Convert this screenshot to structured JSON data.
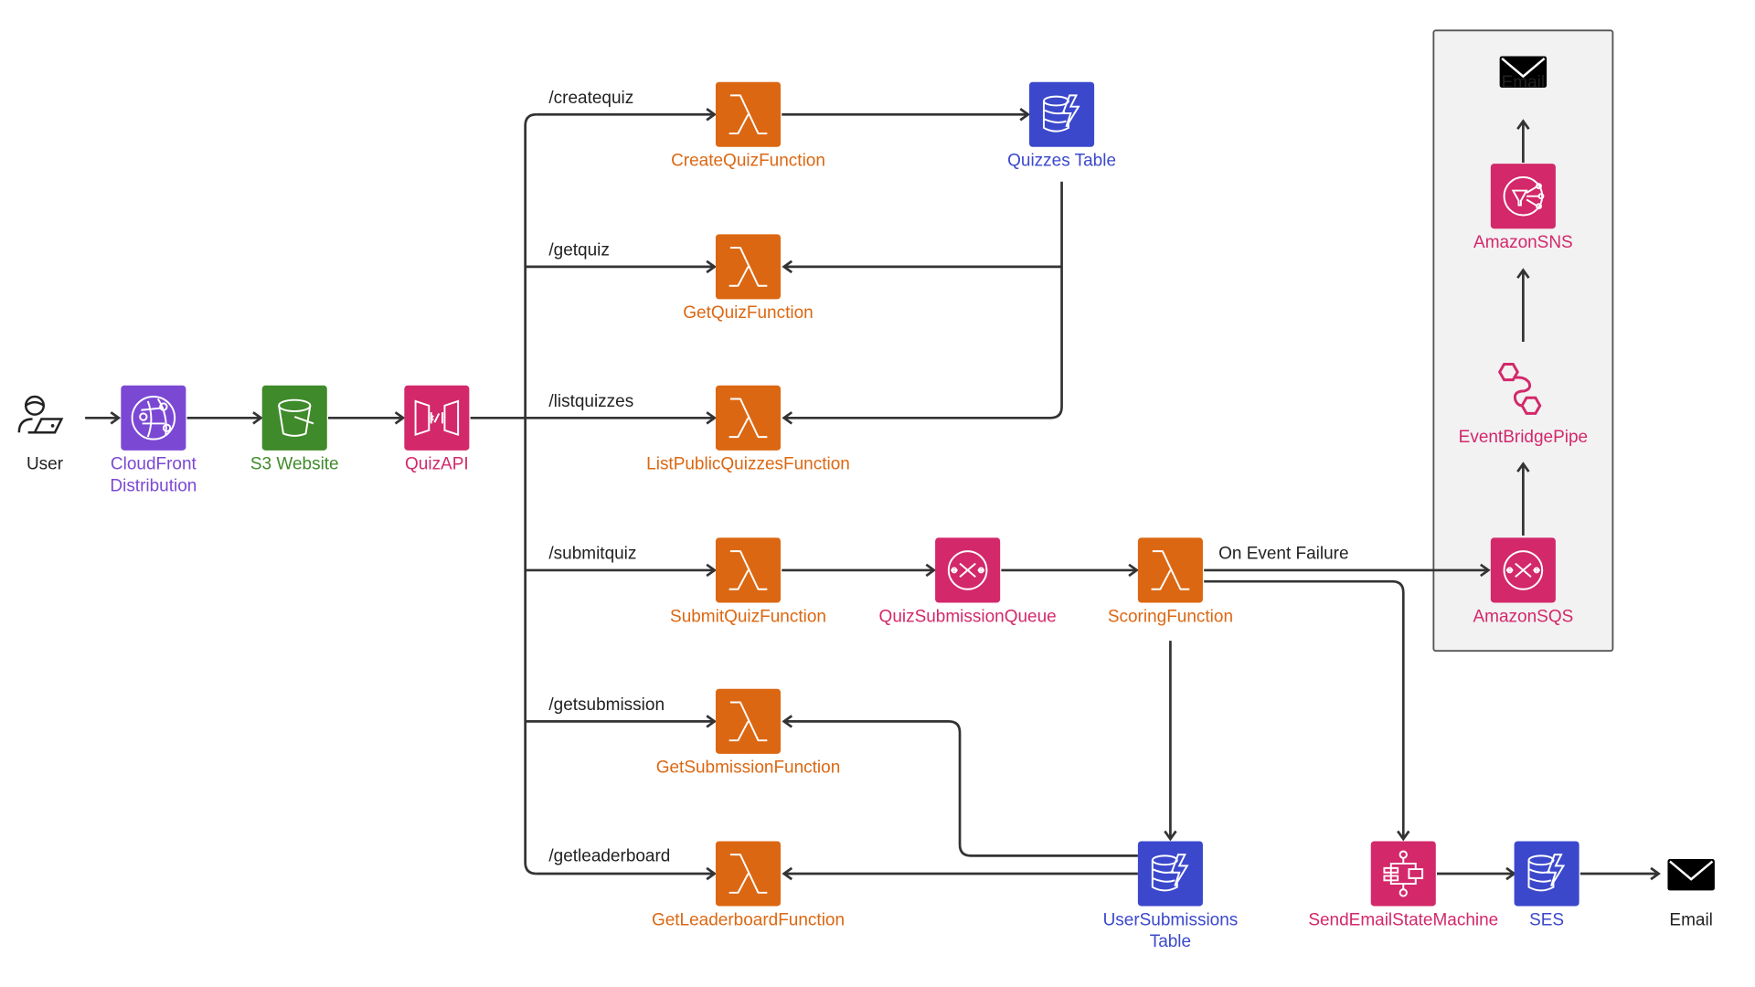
{
  "colors": {
    "lambda": "#dc6712",
    "dynamodb": "#3b48cc",
    "pink": "#d3286a",
    "cloudfront": "#7b48d4",
    "s3": "#3f8a2a",
    "text_dark": "#222222",
    "group_bg": "#f2f2f2"
  },
  "nodes": {
    "user": {
      "label": [
        "User"
      ],
      "icon": "user-laptop-icon"
    },
    "cloudfront": {
      "label": [
        "CloudFront",
        "Distribution"
      ],
      "icon": "cloudfront-icon"
    },
    "s3": {
      "label": [
        "S3 Website"
      ],
      "icon": "s3-bucket-icon"
    },
    "api": {
      "label": [
        "QuizAPI"
      ],
      "icon": "api-gateway-icon"
    },
    "createquiz": {
      "label": [
        "CreateQuizFunction"
      ],
      "icon": "lambda-icon"
    },
    "getquiz": {
      "label": [
        "GetQuizFunction"
      ],
      "icon": "lambda-icon"
    },
    "listquizzes": {
      "label": [
        "ListPublicQuizzesFunction"
      ],
      "icon": "lambda-icon"
    },
    "submitquiz": {
      "label": [
        "SubmitQuizFunction"
      ],
      "icon": "lambda-icon"
    },
    "getsubmission": {
      "label": [
        "GetSubmissionFunction"
      ],
      "icon": "lambda-icon"
    },
    "getleaderboard": {
      "label": [
        "GetLeaderboardFunction"
      ],
      "icon": "lambda-icon"
    },
    "quizzestable": {
      "label": [
        "Quizzes Table"
      ],
      "icon": "dynamodb-icon"
    },
    "queue": {
      "label": [
        "QuizSubmissionQueue"
      ],
      "icon": "sqs-icon"
    },
    "scoring": {
      "label": [
        "ScoringFunction"
      ],
      "icon": "lambda-icon"
    },
    "submissionstable": {
      "label": [
        "UserSubmissions",
        "Table"
      ],
      "icon": "dynamodb-icon"
    },
    "statemachine": {
      "label": [
        "SendEmailStateMachine"
      ],
      "icon": "step-functions-icon"
    },
    "ses": {
      "label": [
        "SES"
      ],
      "icon": "dynamodb-icon"
    },
    "email_bottom": {
      "label": [
        "Email"
      ],
      "icon": "envelope-icon"
    },
    "sqs_dlq": {
      "label": [
        "AmazonSQS"
      ],
      "icon": "sqs-icon"
    },
    "pipe": {
      "label": [
        "EventBridgePipe"
      ],
      "icon": "eventbridge-pipe-icon"
    },
    "sns": {
      "label": [
        "AmazonSNS"
      ],
      "icon": "sns-icon"
    },
    "email_top": {
      "label": [
        "Email"
      ],
      "icon": "envelope-icon"
    }
  },
  "edge_labels": {
    "createquiz": "/createquiz",
    "getquiz": "/getquiz",
    "listquizzes": "/listquizzes",
    "submitquiz": "/submitquiz",
    "getsubmission": "/getsubmission",
    "getleaderboard": "/getleaderboard",
    "failure": "On Event Failure"
  }
}
